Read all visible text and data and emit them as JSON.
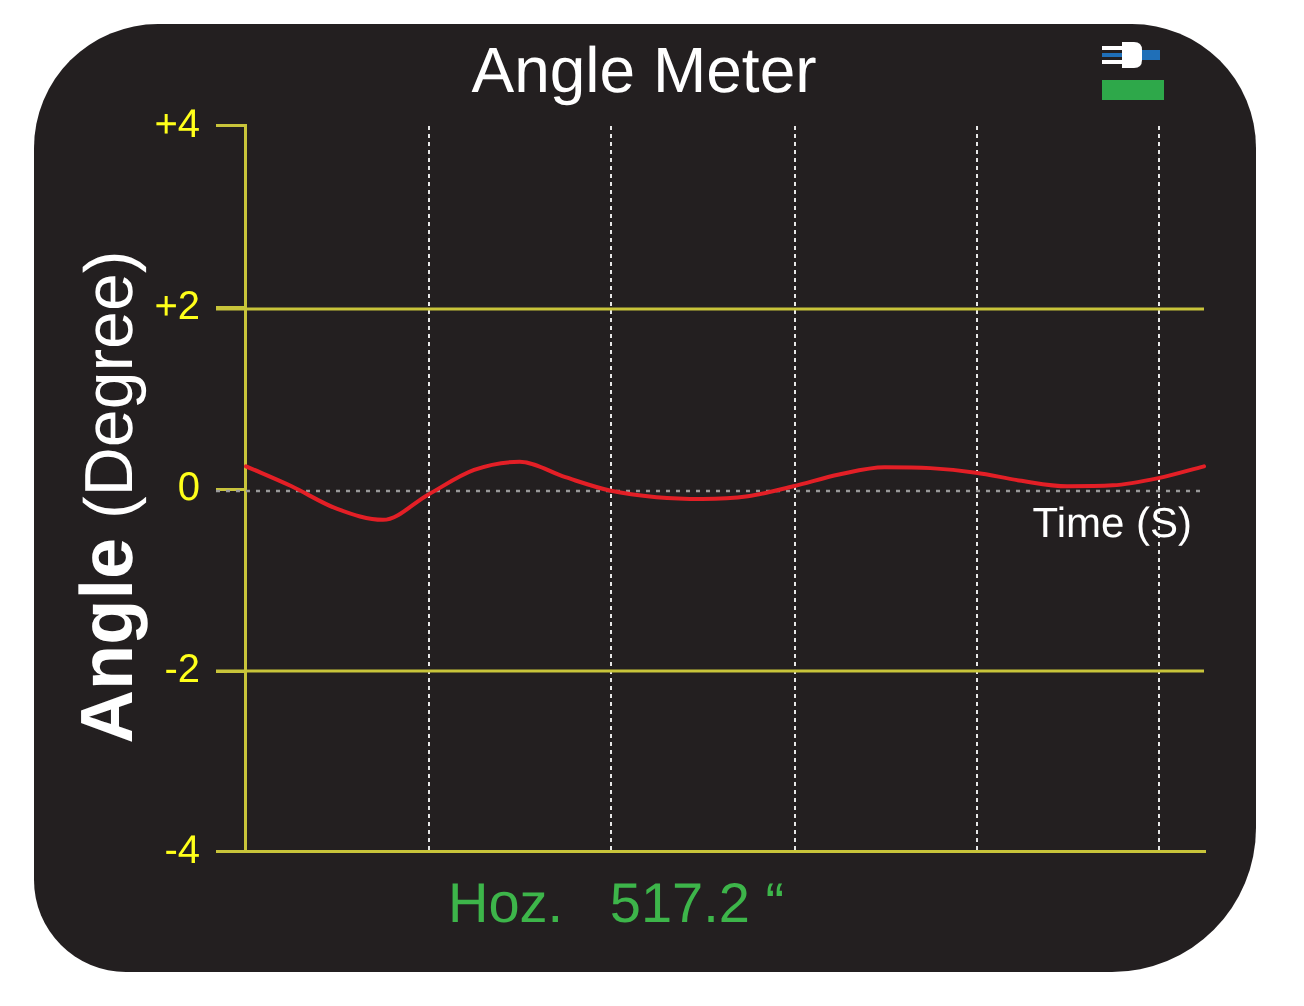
{
  "chart_data": {
    "type": "line",
    "title": "Angle Meter",
    "xlabel": "Time (S)",
    "ylabel": "Angle (Degree)",
    "categories": [
      null,
      null,
      null,
      null,
      null,
      null,
      null,
      null,
      null,
      null,
      null,
      null,
      null,
      null,
      null,
      null,
      null,
      null,
      null,
      null,
      null,
      null
    ],
    "values": [
      0.25,
      0.03,
      -0.22,
      -0.34,
      -0.06,
      0.21,
      0.3,
      0.13,
      -0.02,
      -0.09,
      -0.11,
      -0.08,
      0.03,
      0.16,
      0.24,
      0.23,
      0.18,
      0.09,
      0.03,
      0.04,
      0.12,
      0.25
    ],
    "color": "#e31f26",
    "ylim": [
      -4,
      4
    ],
    "yticks": [
      -4,
      -2,
      0,
      {
        "value": 2,
        "label": "+2"
      },
      {
        "value": 4,
        "label": "+4"
      }
    ],
    "ref_lines": [
      {
        "axis": "y",
        "value": 2,
        "color": "#c8c43a"
      },
      {
        "axis": "y",
        "value": -2,
        "color": "#c8c43a"
      },
      {
        "axis": "y",
        "value": 0,
        "color": "#9a9a9a",
        "line_style": "dotted"
      }
    ],
    "grid": "x",
    "tick_labels": "y",
    "marker": "none",
    "line_style": "solid",
    "annotations": [
      "Hoz.   517.2 “"
    ]
  }
}
